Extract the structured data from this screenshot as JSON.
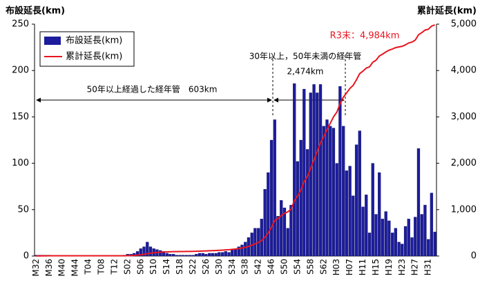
{
  "chart_data": {
    "type": "bar",
    "y_label": "布設延長(km)",
    "y2_label": "累計延長(km)",
    "categories": [
      "M32",
      null,
      null,
      null,
      "M36",
      null,
      null,
      null,
      "M40",
      null,
      null,
      null,
      "M44",
      null,
      null,
      null,
      "T04",
      null,
      null,
      null,
      "T08",
      null,
      null,
      null,
      "T12",
      null,
      null,
      null,
      "S02",
      null,
      null,
      null,
      "S06",
      null,
      null,
      null,
      "S10",
      null,
      null,
      null,
      "S14",
      null,
      null,
      null,
      "S18",
      null,
      null,
      null,
      "S22",
      null,
      null,
      null,
      "S26",
      null,
      null,
      null,
      "S30",
      null,
      null,
      null,
      "S34",
      null,
      null,
      null,
      "S38",
      null,
      null,
      null,
      "S42",
      null,
      null,
      null,
      "S46",
      null,
      null,
      null,
      "S50",
      null,
      null,
      null,
      "S54",
      null,
      null,
      null,
      "S58",
      null,
      null,
      null,
      "S62",
      null,
      null,
      null,
      "H03",
      null,
      null,
      null,
      "H07",
      null,
      null,
      null,
      "H11",
      null,
      null,
      null,
      "H15",
      null,
      null,
      null,
      "H19",
      null,
      null,
      null,
      "H23",
      null,
      null,
      null,
      "H27",
      null,
      null,
      null,
      "H31",
      null,
      null
    ],
    "series": [
      {
        "name": "布設延長(km)",
        "color": "#1c1c9c",
        "values": [
          1,
          1,
          1,
          1,
          1,
          0,
          0,
          0,
          0,
          0,
          0,
          0,
          0,
          0,
          0,
          0,
          0,
          0,
          0,
          0,
          0,
          0,
          0,
          0,
          0,
          0,
          0,
          1,
          2,
          2,
          3,
          5,
          8,
          10,
          15,
          10,
          8,
          7,
          6,
          5,
          3,
          2,
          2,
          1,
          1,
          1,
          1,
          1,
          1,
          2,
          3,
          3,
          2,
          3,
          3,
          3,
          4,
          4,
          5,
          4,
          7,
          8,
          10,
          12,
          15,
          20,
          25,
          30,
          30,
          40,
          72,
          90,
          125,
          147,
          43,
          60,
          52,
          30,
          55,
          186,
          102,
          125,
          180,
          115,
          176,
          185,
          176,
          185,
          140,
          147,
          140,
          138,
          100,
          183,
          140,
          92,
          97,
          65,
          120,
          135,
          53,
          66,
          25,
          100,
          45,
          90,
          40,
          48,
          38,
          25,
          30,
          15,
          13,
          32,
          40,
          20,
          42,
          116,
          45,
          55,
          18,
          68,
          26
        ]
      },
      {
        "name": "累計延長(km)",
        "color": "#e8141e",
        "axis": "y2",
        "line": true,
        "values": [
          1,
          2,
          3,
          4,
          5,
          5,
          5,
          5,
          5,
          5,
          5,
          5,
          5,
          5,
          5,
          5,
          5,
          5,
          5,
          5,
          5,
          5,
          5,
          5,
          5,
          5,
          5,
          6,
          8,
          10,
          13,
          18,
          26,
          36,
          51,
          61,
          69,
          76,
          82,
          87,
          90,
          92,
          94,
          95,
          96,
          97,
          98,
          99,
          100,
          102,
          105,
          108,
          110,
          113,
          116,
          119,
          123,
          127,
          132,
          136,
          143,
          151,
          161,
          173,
          188,
          208,
          233,
          263,
          293,
          333,
          405,
          495,
          620,
          767,
          810,
          870,
          922,
          952,
          1007,
          1193,
          1295,
          1420,
          1600,
          1715,
          1891,
          2076,
          2252,
          2437,
          2577,
          2724,
          2864,
          3002,
          3102,
          3285,
          3425,
          3517,
          3614,
          3679,
          3799,
          3934,
          3987,
          4053,
          4078,
          4178,
          4223,
          4313,
          4353,
          4401,
          4439,
          4464,
          4494,
          4509,
          4522,
          4554,
          4594,
          4614,
          4656,
          4772,
          4817,
          4872,
          4890,
          4958,
          4984
        ]
      }
    ],
    "ylim": [
      0,
      250
    ],
    "yticks": [
      0,
      50,
      100,
      150,
      200,
      250
    ],
    "y2lim": [
      0,
      5000
    ],
    "y2ticks": [
      0,
      {
        "value": 1000,
        "label": "1,000"
      },
      {
        "value": 2000,
        "label": "2,000"
      },
      {
        "value": 3000,
        "label": "3,000"
      },
      {
        "value": 4000,
        "label": "4,000"
      },
      {
        "value": 5000,
        "label": "5,000"
      }
    ],
    "legend": "upper left",
    "annotations": [
      "50年以上経過した経年管　603km",
      "30年以上，50年未満の経年管",
      "2,474km",
      "R3末：4,984km"
    ]
  }
}
